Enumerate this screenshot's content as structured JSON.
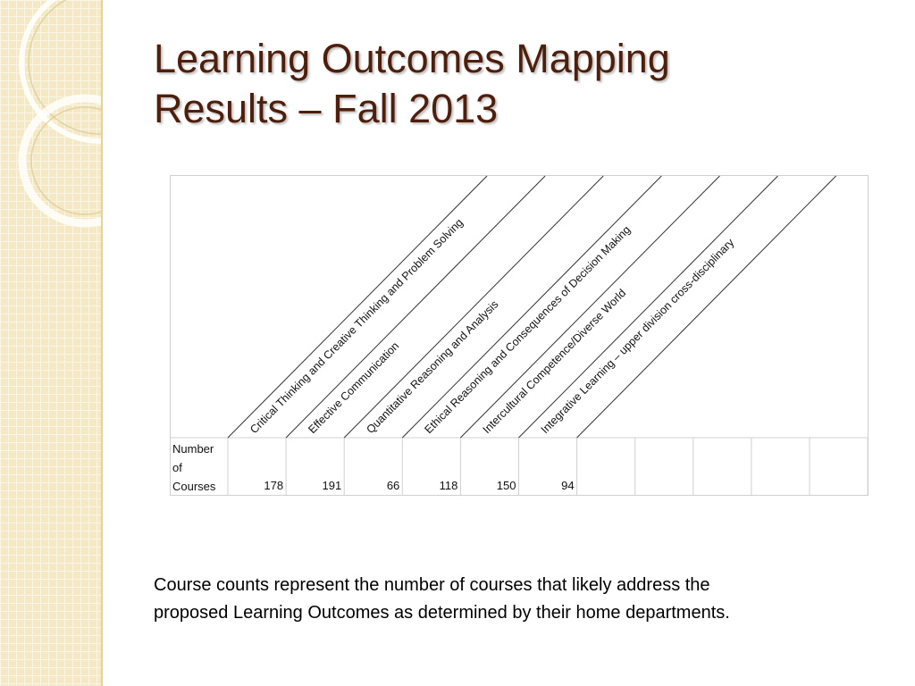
{
  "title": {
    "line1": "Learning Outcomes Mapping",
    "line2": "Results – Fall 2013"
  },
  "table": {
    "row_label": "Number of Courses",
    "row_label_lines": [
      "Number",
      "of",
      "Courses"
    ],
    "columns": [
      {
        "header": "Critical Thinking and Creative Thinking and Problem Solving",
        "count": "178"
      },
      {
        "header": "Effective Communication",
        "count": "191"
      },
      {
        "header": "Quantitative Reasoning and Analysis",
        "count": "66"
      },
      {
        "header": "Ethical Reasoning and Consequences of Decision Making",
        "count": "118"
      },
      {
        "header": "Intercultural Competence/Diverse World",
        "count": "150"
      },
      {
        "header": "Integrative Learning – upper division cross-disciplinary",
        "count": "94"
      }
    ],
    "empty_columns": 5
  },
  "caption": {
    "line1": "Course counts represent the number of courses that likely address the",
    "line2": "proposed Learning Outcomes as determined by their home departments."
  },
  "colors": {
    "title": "#4e1f0c",
    "sidebar": "#f4e9c4",
    "grid": "#d0d0d0",
    "diagonal": "#333333"
  }
}
